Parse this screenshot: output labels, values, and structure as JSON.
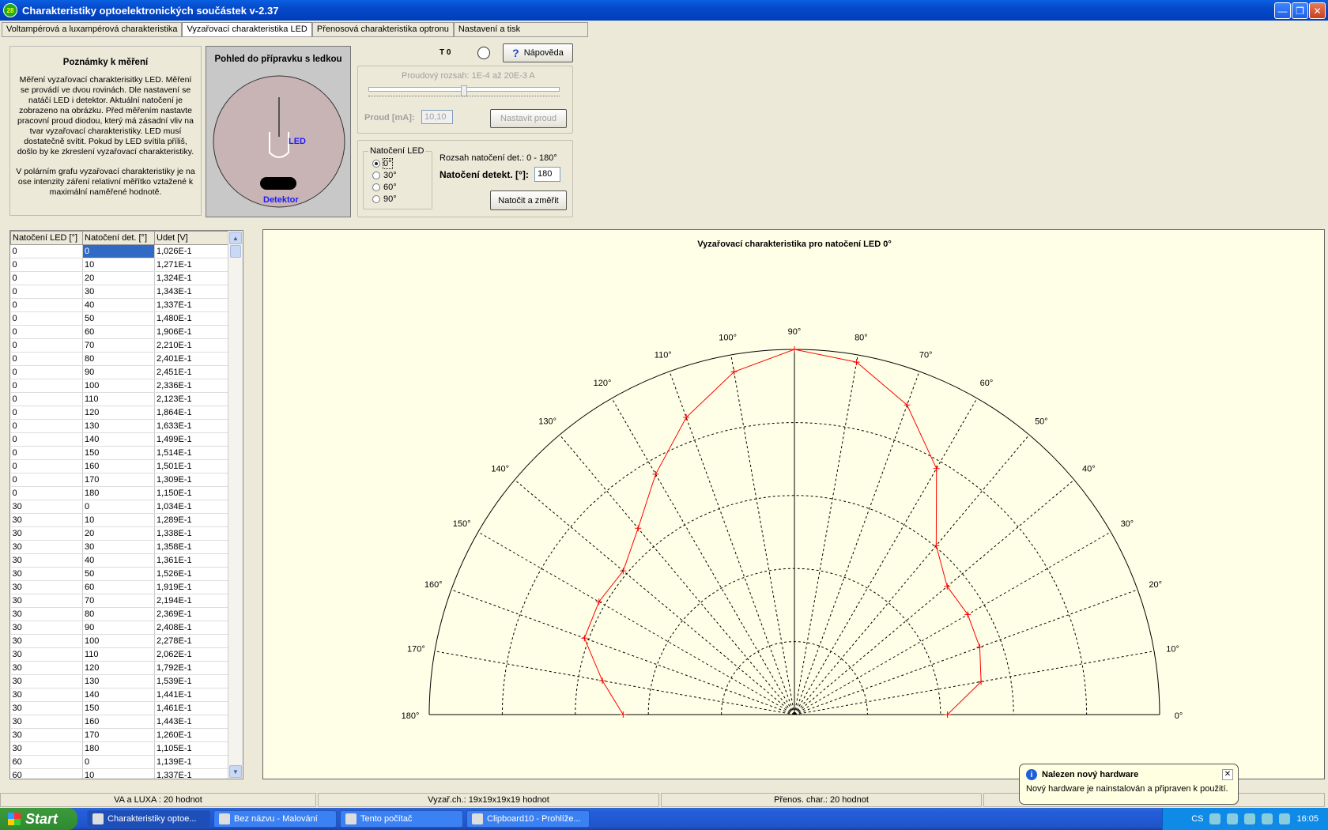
{
  "window": {
    "title": "Charakteristiky optoelektronických součástek v-2.37"
  },
  "tabs": [
    "Voltampérová a luxampérová charakteristika",
    "Vyzařovací charakteristika LED",
    "Přenosová charakteristika optronu",
    "Nastavení a tisk"
  ],
  "notes": {
    "title": "Poznámky k měření",
    "p1": "Měření vyzařovací charakterisitky LED. Měření se provádí ve dvou rovinách. Dle nastavení se natáčí LED i detektor. Aktuální natočení je zobrazeno na obrázku. Před měřením nastavte pracovní proud diodou, který má zásadní vliv na tvar vyzařovací charakteristiky. LED musí dostatečně svítit. Pokud by LED svítila příliš, došlo by ke zkreslení vyzařovací charakteristiky.",
    "p2": "V polárním grafu vyzařovací charakteristiky je na ose intenzity záření relativní měřítko vztažené k maximální naměřené hodnotě."
  },
  "fixture": {
    "title": "Pohled do přípravku s ledkou",
    "led_label": "LED",
    "detector_label": "Detektor"
  },
  "controls": {
    "t0_label": "T 0",
    "help_label": "Nápověda",
    "range_label": "Proudový rozsah: 1E-4 až 20E-3 A",
    "current_label": "Proud [mA]:",
    "current_value": "10,10",
    "set_current_label": "Nastavit proud",
    "led_group_label": "Natočení LED",
    "led_options": [
      "0°",
      "30°",
      "60°",
      "90°"
    ],
    "det_range_label": "Rozsah natočení det.: 0 - 180°",
    "det_label": "Natočení detekt. [°]:",
    "det_value": "180",
    "measure_label": "Natočit a změřit"
  },
  "table": {
    "headers": [
      "Natočení LED [°]",
      "Natočení det. [°]",
      "Udet [V]"
    ],
    "rows": [
      [
        "0",
        "0",
        "1,026E-1"
      ],
      [
        "0",
        "10",
        "1,271E-1"
      ],
      [
        "0",
        "20",
        "1,324E-1"
      ],
      [
        "0",
        "30",
        "1,343E-1"
      ],
      [
        "0",
        "40",
        "1,337E-1"
      ],
      [
        "0",
        "50",
        "1,480E-1"
      ],
      [
        "0",
        "60",
        "1,906E-1"
      ],
      [
        "0",
        "70",
        "2,210E-1"
      ],
      [
        "0",
        "80",
        "2,401E-1"
      ],
      [
        "0",
        "90",
        "2,451E-1"
      ],
      [
        "0",
        "100",
        "2,336E-1"
      ],
      [
        "0",
        "110",
        "2,123E-1"
      ],
      [
        "0",
        "120",
        "1,864E-1"
      ],
      [
        "0",
        "130",
        "1,633E-1"
      ],
      [
        "0",
        "140",
        "1,499E-1"
      ],
      [
        "0",
        "150",
        "1,514E-1"
      ],
      [
        "0",
        "160",
        "1,501E-1"
      ],
      [
        "0",
        "170",
        "1,309E-1"
      ],
      [
        "0",
        "180",
        "1,150E-1"
      ],
      [
        "30",
        "0",
        "1,034E-1"
      ],
      [
        "30",
        "10",
        "1,289E-1"
      ],
      [
        "30",
        "20",
        "1,338E-1"
      ],
      [
        "30",
        "30",
        "1,358E-1"
      ],
      [
        "30",
        "40",
        "1,361E-1"
      ],
      [
        "30",
        "50",
        "1,526E-1"
      ],
      [
        "30",
        "60",
        "1,919E-1"
      ],
      [
        "30",
        "70",
        "2,194E-1"
      ],
      [
        "30",
        "80",
        "2,369E-1"
      ],
      [
        "30",
        "90",
        "2,408E-1"
      ],
      [
        "30",
        "100",
        "2,278E-1"
      ],
      [
        "30",
        "110",
        "2,062E-1"
      ],
      [
        "30",
        "120",
        "1,792E-1"
      ],
      [
        "30",
        "130",
        "1,539E-1"
      ],
      [
        "30",
        "140",
        "1,441E-1"
      ],
      [
        "30",
        "150",
        "1,461E-1"
      ],
      [
        "30",
        "160",
        "1,443E-1"
      ],
      [
        "30",
        "170",
        "1,260E-1"
      ],
      [
        "30",
        "180",
        "1,105E-1"
      ],
      [
        "60",
        "0",
        "1,139E-1"
      ],
      [
        "60",
        "10",
        "1,337E-1"
      ]
    ]
  },
  "chart_data": {
    "type": "polar",
    "title": "Vyzařovací charakteristika pro natočení LED 0°",
    "angles": [
      0,
      10,
      20,
      30,
      40,
      50,
      60,
      70,
      80,
      90,
      100,
      110,
      120,
      130,
      140,
      150,
      160,
      170,
      180
    ],
    "angle_labels": [
      "0°",
      "10°",
      "20°",
      "30°",
      "40°",
      "50°",
      "60°",
      "70°",
      "80°",
      "90°",
      "100°",
      "110°",
      "120°",
      "130°",
      "140°",
      "150°",
      "160°",
      "170°",
      "180°"
    ],
    "values": [
      0.419,
      0.519,
      0.54,
      0.548,
      0.546,
      0.604,
      0.778,
      0.902,
      0.98,
      1.0,
      0.953,
      0.866,
      0.76,
      0.666,
      0.612,
      0.618,
      0.612,
      0.534,
      0.469
    ],
    "rlim": [
      0,
      1
    ],
    "grid": true,
    "series_color": "#ff0000"
  },
  "status": [
    "VA a LUXA : 20 hodnot",
    "Vyzař.ch.: 19x19x19x19 hodnot",
    "Přenos. char.: 20 hodnot",
    ""
  ],
  "taskbar": {
    "start": "Start",
    "tasks": [
      "Charakteristiky optoe...",
      "Bez názvu - Malování",
      "Tento počítač",
      "Clipboard10 - Prohlíže..."
    ],
    "lang": "CS",
    "clock": "16:05"
  },
  "balloon": {
    "title": "Nalezen nový hardware",
    "text": "Nový hardware je nainstalován a připraven k použití."
  }
}
